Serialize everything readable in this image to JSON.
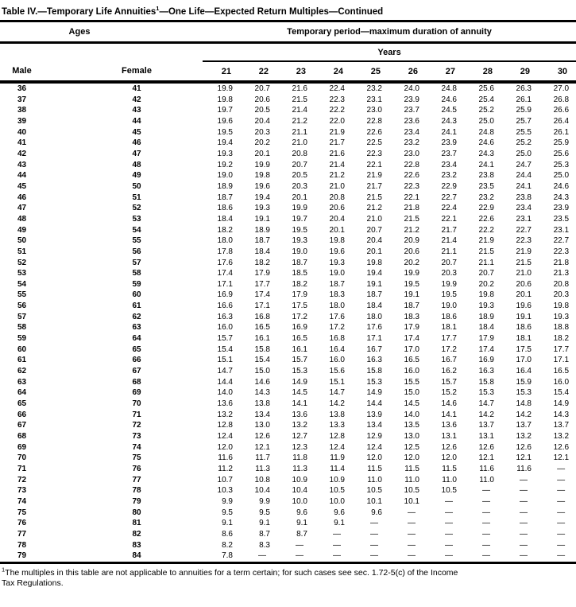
{
  "title": {
    "part1": "Table IV.—Temporary Life Annuities",
    "sup": "1",
    "part2": "—One Life—Expected Return Multiples—Continued"
  },
  "table": {
    "header": {
      "ages": "Ages",
      "temp_period": "Temporary period—maximum duration of annuity",
      "years": "Years",
      "male": "Male",
      "female": "Female",
      "year_cols": [
        "21",
        "22",
        "23",
        "24",
        "25",
        "26",
        "27",
        "28",
        "29",
        "30"
      ]
    },
    "rows": [
      {
        "male": "36",
        "female": "41",
        "values": [
          "19.9",
          "20.7",
          "21.6",
          "22.4",
          "23.2",
          "24.0",
          "24.8",
          "25.6",
          "26.3",
          "27.0"
        ]
      },
      {
        "male": "37",
        "female": "42",
        "values": [
          "19.8",
          "20.6",
          "21.5",
          "22.3",
          "23.1",
          "23.9",
          "24.6",
          "25.4",
          "26.1",
          "26.8"
        ]
      },
      {
        "male": "38",
        "female": "43",
        "values": [
          "19.7",
          "20.5",
          "21.4",
          "22.2",
          "23.0",
          "23.7",
          "24.5",
          "25.2",
          "25.9",
          "26.6"
        ]
      },
      {
        "male": "39",
        "female": "44",
        "values": [
          "19.6",
          "20.4",
          "21.2",
          "22.0",
          "22.8",
          "23.6",
          "24.3",
          "25.0",
          "25.7",
          "26.4"
        ]
      },
      {
        "male": "40",
        "female": "45",
        "values": [
          "19.5",
          "20.3",
          "21.1",
          "21.9",
          "22.6",
          "23.4",
          "24.1",
          "24.8",
          "25.5",
          "26.1"
        ]
      },
      {
        "male": "41",
        "female": "46",
        "values": [
          "19.4",
          "20.2",
          "21.0",
          "21.7",
          "22.5",
          "23.2",
          "23.9",
          "24.6",
          "25.2",
          "25.9"
        ]
      },
      {
        "male": "42",
        "female": "47",
        "values": [
          "19.3",
          "20.1",
          "20.8",
          "21.6",
          "22.3",
          "23.0",
          "23.7",
          "24.3",
          "25.0",
          "25.6"
        ]
      },
      {
        "male": "43",
        "female": "48",
        "values": [
          "19.2",
          "19.9",
          "20.7",
          "21.4",
          "22.1",
          "22.8",
          "23.4",
          "24.1",
          "24.7",
          "25.3"
        ]
      },
      {
        "male": "44",
        "female": "49",
        "values": [
          "19.0",
          "19.8",
          "20.5",
          "21.2",
          "21.9",
          "22.6",
          "23.2",
          "23.8",
          "24.4",
          "25.0"
        ]
      },
      {
        "male": "45",
        "female": "50",
        "values": [
          "18.9",
          "19.6",
          "20.3",
          "21.0",
          "21.7",
          "22.3",
          "22.9",
          "23.5",
          "24.1",
          "24.6"
        ]
      },
      {
        "male": "46",
        "female": "51",
        "values": [
          "18.7",
          "19.4",
          "20.1",
          "20.8",
          "21.5",
          "22.1",
          "22.7",
          "23.2",
          "23.8",
          "24.3"
        ]
      },
      {
        "male": "47",
        "female": "52",
        "values": [
          "18.6",
          "19.3",
          "19.9",
          "20.6",
          "21.2",
          "21.8",
          "22.4",
          "22.9",
          "23.4",
          "23.9"
        ]
      },
      {
        "male": "48",
        "female": "53",
        "values": [
          "18.4",
          "19.1",
          "19.7",
          "20.4",
          "21.0",
          "21.5",
          "22.1",
          "22.6",
          "23.1",
          "23.5"
        ]
      },
      {
        "male": "49",
        "female": "54",
        "values": [
          "18.2",
          "18.9",
          "19.5",
          "20.1",
          "20.7",
          "21.2",
          "21.7",
          "22.2",
          "22.7",
          "23.1"
        ]
      },
      {
        "male": "50",
        "female": "55",
        "values": [
          "18.0",
          "18.7",
          "19.3",
          "19.8",
          "20.4",
          "20.9",
          "21.4",
          "21.9",
          "22.3",
          "22.7"
        ]
      },
      {
        "male": "51",
        "female": "56",
        "values": [
          "17.8",
          "18.4",
          "19.0",
          "19.6",
          "20.1",
          "20.6",
          "21.1",
          "21.5",
          "21.9",
          "22.3"
        ]
      },
      {
        "male": "52",
        "female": "57",
        "values": [
          "17.6",
          "18.2",
          "18.7",
          "19.3",
          "19.8",
          "20.2",
          "20.7",
          "21.1",
          "21.5",
          "21.8"
        ]
      },
      {
        "male": "53",
        "female": "58",
        "values": [
          "17.4",
          "17.9",
          "18.5",
          "19.0",
          "19.4",
          "19.9",
          "20.3",
          "20.7",
          "21.0",
          "21.3"
        ]
      },
      {
        "male": "54",
        "female": "59",
        "values": [
          "17.1",
          "17.7",
          "18.2",
          "18.7",
          "19.1",
          "19.5",
          "19.9",
          "20.2",
          "20.6",
          "20.8"
        ]
      },
      {
        "male": "55",
        "female": "60",
        "values": [
          "16.9",
          "17.4",
          "17.9",
          "18.3",
          "18.7",
          "19.1",
          "19.5",
          "19.8",
          "20.1",
          "20.3"
        ]
      },
      {
        "male": "56",
        "female": "61",
        "values": [
          "16.6",
          "17.1",
          "17.5",
          "18.0",
          "18.4",
          "18.7",
          "19.0",
          "19.3",
          "19.6",
          "19.8"
        ]
      },
      {
        "male": "57",
        "female": "62",
        "values": [
          "16.3",
          "16.8",
          "17.2",
          "17.6",
          "18.0",
          "18.3",
          "18.6",
          "18.9",
          "19.1",
          "19.3"
        ]
      },
      {
        "male": "58",
        "female": "63",
        "values": [
          "16.0",
          "16.5",
          "16.9",
          "17.2",
          "17.6",
          "17.9",
          "18.1",
          "18.4",
          "18.6",
          "18.8"
        ]
      },
      {
        "male": "59",
        "female": "64",
        "values": [
          "15.7",
          "16.1",
          "16.5",
          "16.8",
          "17.1",
          "17.4",
          "17.7",
          "17.9",
          "18.1",
          "18.2"
        ]
      },
      {
        "male": "60",
        "female": "65",
        "values": [
          "15.4",
          "15.8",
          "16.1",
          "16.4",
          "16.7",
          "17.0",
          "17.2",
          "17.4",
          "17.5",
          "17.7"
        ]
      },
      {
        "male": "61",
        "female": "66",
        "values": [
          "15.1",
          "15.4",
          "15.7",
          "16.0",
          "16.3",
          "16.5",
          "16.7",
          "16.9",
          "17.0",
          "17.1"
        ]
      },
      {
        "male": "62",
        "female": "67",
        "values": [
          "14.7",
          "15.0",
          "15.3",
          "15.6",
          "15.8",
          "16.0",
          "16.2",
          "16.3",
          "16.4",
          "16.5"
        ]
      },
      {
        "male": "63",
        "female": "68",
        "values": [
          "14.4",
          "14.6",
          "14.9",
          "15.1",
          "15.3",
          "15.5",
          "15.7",
          "15.8",
          "15.9",
          "16.0"
        ]
      },
      {
        "male": "64",
        "female": "69",
        "values": [
          "14.0",
          "14.3",
          "14.5",
          "14.7",
          "14.9",
          "15.0",
          "15.2",
          "15.3",
          "15.3",
          "15.4"
        ]
      },
      {
        "male": "65",
        "female": "70",
        "values": [
          "13.6",
          "13.8",
          "14.1",
          "14.2",
          "14.4",
          "14.5",
          "14.6",
          "14.7",
          "14.8",
          "14.9"
        ]
      },
      {
        "male": "66",
        "female": "71",
        "values": [
          "13.2",
          "13.4",
          "13.6",
          "13.8",
          "13.9",
          "14.0",
          "14.1",
          "14.2",
          "14.2",
          "14.3"
        ]
      },
      {
        "male": "67",
        "female": "72",
        "values": [
          "12.8",
          "13.0",
          "13.2",
          "13.3",
          "13.4",
          "13.5",
          "13.6",
          "13.7",
          "13.7",
          "13.7"
        ]
      },
      {
        "male": "68",
        "female": "73",
        "values": [
          "12.4",
          "12.6",
          "12.7",
          "12.8",
          "12.9",
          "13.0",
          "13.1",
          "13.1",
          "13.2",
          "13.2"
        ]
      },
      {
        "male": "69",
        "female": "74",
        "values": [
          "12.0",
          "12.1",
          "12.3",
          "12.4",
          "12.4",
          "12.5",
          "12.6",
          "12.6",
          "12.6",
          "12.6"
        ]
      },
      {
        "male": "70",
        "female": "75",
        "values": [
          "11.6",
          "11.7",
          "11.8",
          "11.9",
          "12.0",
          "12.0",
          "12.0",
          "12.1",
          "12.1",
          "12.1"
        ]
      },
      {
        "male": "71",
        "female": "76",
        "values": [
          "11.2",
          "11.3",
          "11.3",
          "11.4",
          "11.5",
          "11.5",
          "11.5",
          "11.6",
          "11.6",
          "—"
        ]
      },
      {
        "male": "72",
        "female": "77",
        "values": [
          "10.7",
          "10.8",
          "10.9",
          "10.9",
          "11.0",
          "11.0",
          "11.0",
          "11.0",
          "—",
          "—"
        ]
      },
      {
        "male": "73",
        "female": "78",
        "values": [
          "10.3",
          "10.4",
          "10.4",
          "10.5",
          "10.5",
          "10.5",
          "10.5",
          "—",
          "—",
          "—"
        ]
      },
      {
        "male": "74",
        "female": "79",
        "values": [
          "9.9",
          "9.9",
          "10.0",
          "10.0",
          "10.1",
          "10.1",
          "—",
          "—",
          "—",
          "—"
        ]
      },
      {
        "male": "75",
        "female": "80",
        "values": [
          "9.5",
          "9.5",
          "9.6",
          "9.6",
          "9.6",
          "—",
          "—",
          "—",
          "—",
          "—"
        ]
      },
      {
        "male": "76",
        "female": "81",
        "values": [
          "9.1",
          "9.1",
          "9.1",
          "9.1",
          "—",
          "—",
          "—",
          "—",
          "—",
          "—"
        ]
      },
      {
        "male": "77",
        "female": "82",
        "values": [
          "8.6",
          "8.7",
          "8.7",
          "—",
          "—",
          "—",
          "—",
          "—",
          "—",
          "—"
        ]
      },
      {
        "male": "78",
        "female": "83",
        "values": [
          "8.2",
          "8.3",
          "—",
          "—",
          "—",
          "—",
          "—",
          "—",
          "—",
          "—"
        ]
      },
      {
        "male": "79",
        "female": "84",
        "values": [
          "7.8",
          "—",
          "—",
          "—",
          "—",
          "—",
          "—",
          "—",
          "—",
          "—"
        ]
      }
    ]
  },
  "footnote": {
    "sup": "1",
    "line1": "The multiples in this table are not applicable to annuities for a term certain; for such cases see sec. 1.72-5(c) of the Income",
    "line2": "Tax Regulations."
  }
}
